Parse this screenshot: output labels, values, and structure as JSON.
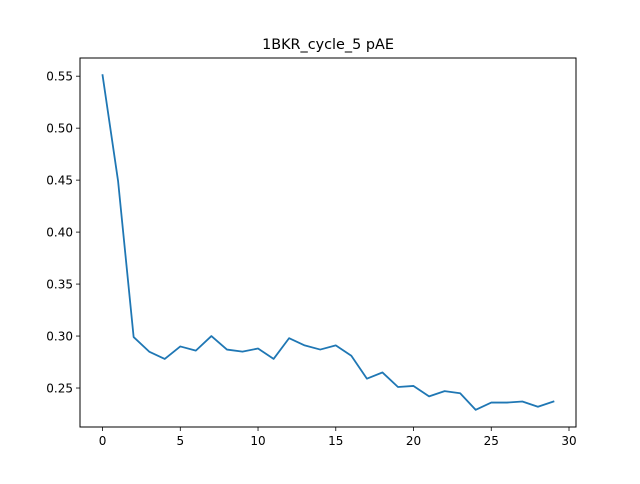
{
  "chart_data": {
    "type": "line",
    "title": "1BKR_cycle_5 pAE",
    "xlabel": "",
    "ylabel": "",
    "xlim": [
      -1.45,
      30.45
    ],
    "ylim": [
      0.2125,
      0.5675
    ],
    "xticks": [
      0,
      5,
      10,
      15,
      20,
      25,
      30
    ],
    "xtick_labels": [
      "0",
      "5",
      "10",
      "15",
      "20",
      "25",
      "30"
    ],
    "yticks": [
      0.25,
      0.3,
      0.35,
      0.4,
      0.45,
      0.5,
      0.55
    ],
    "ytick_labels": [
      "0.25",
      "0.30",
      "0.35",
      "0.40",
      "0.45",
      "0.50",
      "0.55"
    ],
    "grid": false,
    "series": [
      {
        "color": "#1f77b4",
        "x": [
          0,
          1,
          2,
          3,
          4,
          5,
          6,
          7,
          8,
          9,
          10,
          11,
          12,
          13,
          14,
          15,
          16,
          17,
          18,
          19,
          20,
          21,
          22,
          23,
          24,
          25,
          26,
          27,
          28,
          29
        ],
        "values": [
          0.551,
          0.449,
          0.299,
          0.285,
          0.278,
          0.29,
          0.286,
          0.3,
          0.287,
          0.285,
          0.288,
          0.278,
          0.298,
          0.291,
          0.287,
          0.291,
          0.281,
          0.259,
          0.265,
          0.251,
          0.252,
          0.242,
          0.247,
          0.245,
          0.229,
          0.236,
          0.236,
          0.237,
          0.232,
          0.237
        ]
      }
    ]
  }
}
